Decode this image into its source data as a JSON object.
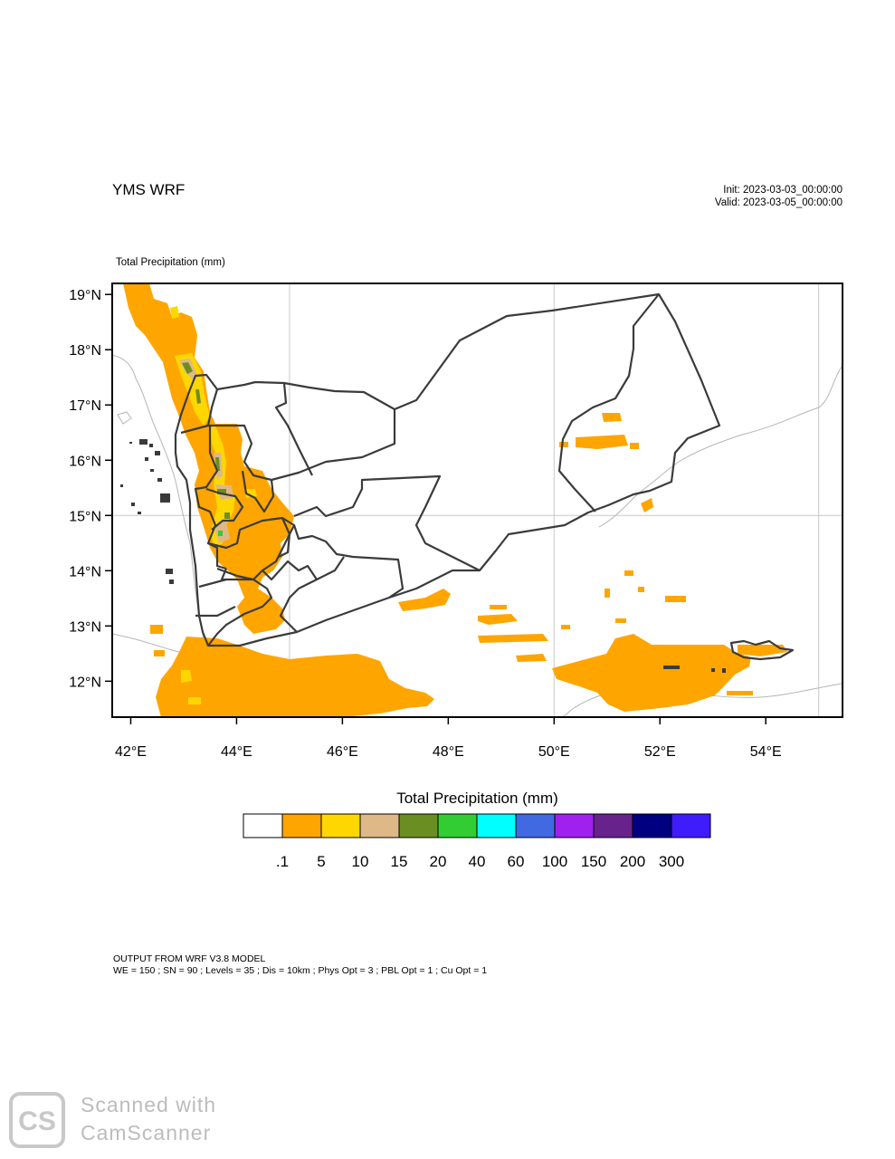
{
  "header": {
    "title": "YMS WRF",
    "init": "Init: 2023-03-03_00:00:00",
    "valid": "Valid: 2023-03-05_00:00:00"
  },
  "map": {
    "field_label": "Total Precipitation   (mm)",
    "lat_labels": [
      "19°N",
      "18°N",
      "17°N",
      "16°N",
      "15°N",
      "14°N",
      "13°N",
      "12°N"
    ],
    "lon_labels": [
      "42°E",
      "44°E",
      "46°E",
      "48°E",
      "50°E",
      "52°E",
      "54°E"
    ],
    "lon_range": [
      41.65,
      55.45
    ],
    "lat_range": [
      11.35,
      19.2
    ],
    "grid_lines": {
      "lon": [
        45,
        50,
        55
      ],
      "lat": [
        15
      ]
    }
  },
  "colorbar": {
    "title": "Total Precipitation  (mm)",
    "colors": [
      "#ffffff",
      "#ffa500",
      "#ffd700",
      "#deb887",
      "#6b8e23",
      "#32cd32",
      "#00ffff",
      "#4169e1",
      "#a020f0",
      "#68228b",
      "#000080",
      "#3f1cfc"
    ],
    "ticks": [
      ".1",
      "5",
      "10",
      "15",
      "20",
      "40",
      "60",
      "100",
      "150",
      "200",
      "300"
    ]
  },
  "footer": {
    "line1": "OUTPUT FROM WRF V3.8 MODEL",
    "line2": "WE = 150 ; SN = 90 ; Levels = 35 ; Dis = 10km ; Phys Opt = 3 ; PBL Opt = 1 ; Cu Opt = 1"
  },
  "watermark": {
    "logo": "CS",
    "line1": "Scanned  with",
    "line2": "CamScanner"
  }
}
